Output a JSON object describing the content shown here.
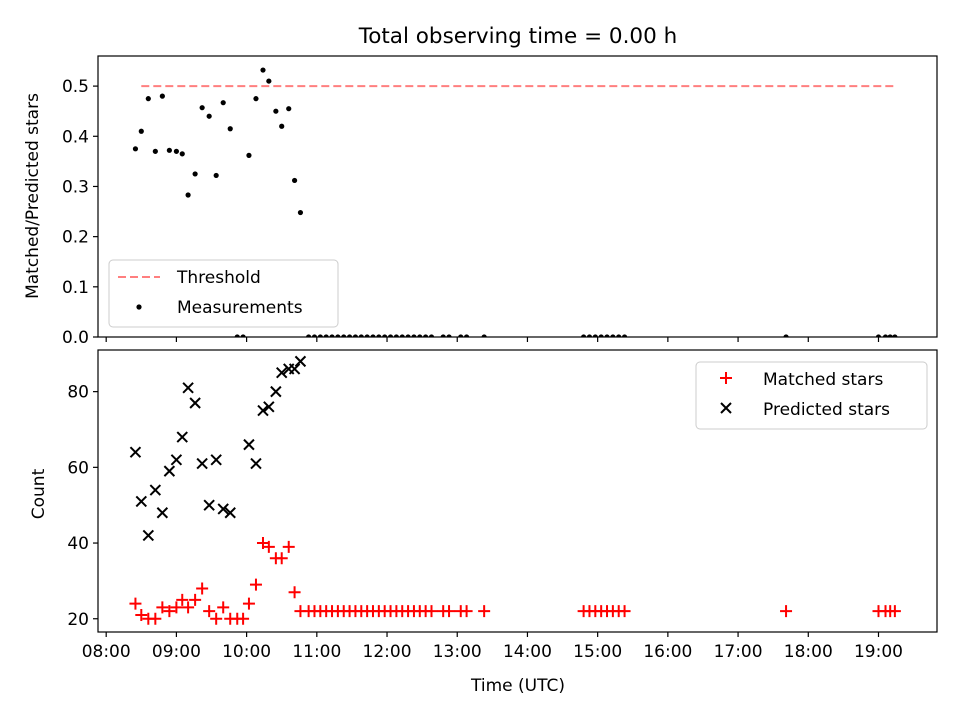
{
  "chart_data": [
    {
      "type": "scatter",
      "title": "Total observing time = 0.00 h",
      "xlabel": "",
      "ylabel": "Matched/Predicted stars",
      "xlim": [
        "07:53",
        "19:50"
      ],
      "ylim": [
        0,
        0.56
      ],
      "yticks": [
        0.0,
        0.1,
        0.2,
        0.3,
        0.4,
        0.5
      ],
      "ytick_labels": [
        "0.0",
        "0.1",
        "0.2",
        "0.3",
        "0.4",
        "0.5"
      ],
      "xticks": [
        "08:00",
        "09:00",
        "10:00",
        "11:00",
        "12:00",
        "13:00",
        "14:00",
        "15:00",
        "16:00",
        "17:00",
        "18:00",
        "19:00"
      ],
      "legend_position": "lower-left",
      "legend": [
        {
          "name": "Threshold",
          "style": "dashed-line",
          "color": "#ff7f7f"
        },
        {
          "name": "Measurements",
          "style": "dot",
          "color": "#000000"
        }
      ],
      "threshold": {
        "name": "Threshold",
        "value": 0.5,
        "x_start": "08:30",
        "x_end": "19:15",
        "color": "#ff7f7f"
      },
      "series": [
        {
          "name": "Measurements",
          "color": "#000000",
          "points": [
            {
              "x": "08:25",
              "y": 0.375
            },
            {
              "x": "08:30",
              "y": 0.41
            },
            {
              "x": "08:36",
              "y": 0.475
            },
            {
              "x": "08:42",
              "y": 0.37
            },
            {
              "x": "08:48",
              "y": 0.48
            },
            {
              "x": "08:54",
              "y": 0.372
            },
            {
              "x": "09:00",
              "y": 0.37
            },
            {
              "x": "09:05",
              "y": 0.365
            },
            {
              "x": "09:10",
              "y": 0.283
            },
            {
              "x": "09:16",
              "y": 0.325
            },
            {
              "x": "09:22",
              "y": 0.457
            },
            {
              "x": "09:28",
              "y": 0.44
            },
            {
              "x": "09:34",
              "y": 0.322
            },
            {
              "x": "09:40",
              "y": 0.467
            },
            {
              "x": "09:46",
              "y": 0.415
            },
            {
              "x": "09:52",
              "y": 0.0
            },
            {
              "x": "09:57",
              "y": 0.0
            },
            {
              "x": "10:02",
              "y": 0.362
            },
            {
              "x": "10:08",
              "y": 0.475
            },
            {
              "x": "10:14",
              "y": 0.532
            },
            {
              "x": "10:19",
              "y": 0.51
            },
            {
              "x": "10:25",
              "y": 0.45
            },
            {
              "x": "10:30",
              "y": 0.42
            },
            {
              "x": "10:36",
              "y": 0.455
            },
            {
              "x": "10:41",
              "y": 0.312
            },
            {
              "x": "10:46",
              "y": 0.248
            },
            {
              "x": "10:53",
              "y": 0.0
            },
            {
              "x": "10:58",
              "y": 0.0
            },
            {
              "x": "11:03",
              "y": 0.0
            },
            {
              "x": "11:08",
              "y": 0.0
            },
            {
              "x": "11:13",
              "y": 0.0
            },
            {
              "x": "11:18",
              "y": 0.0
            },
            {
              "x": "11:23",
              "y": 0.0
            },
            {
              "x": "11:28",
              "y": 0.0
            },
            {
              "x": "11:33",
              "y": 0.0
            },
            {
              "x": "11:38",
              "y": 0.0
            },
            {
              "x": "11:43",
              "y": 0.0
            },
            {
              "x": "11:48",
              "y": 0.0
            },
            {
              "x": "11:53",
              "y": 0.0
            },
            {
              "x": "11:58",
              "y": 0.0
            },
            {
              "x": "12:03",
              "y": 0.0
            },
            {
              "x": "12:08",
              "y": 0.0
            },
            {
              "x": "12:13",
              "y": 0.0
            },
            {
              "x": "12:18",
              "y": 0.0
            },
            {
              "x": "12:23",
              "y": 0.0
            },
            {
              "x": "12:28",
              "y": 0.0
            },
            {
              "x": "12:33",
              "y": 0.0
            },
            {
              "x": "12:38",
              "y": 0.0
            },
            {
              "x": "12:48",
              "y": 0.0
            },
            {
              "x": "12:53",
              "y": 0.0
            },
            {
              "x": "13:03",
              "y": 0.0
            },
            {
              "x": "13:08",
              "y": 0.0
            },
            {
              "x": "13:23",
              "y": 0.0
            },
            {
              "x": "14:48",
              "y": 0.0
            },
            {
              "x": "14:53",
              "y": 0.0
            },
            {
              "x": "14:58",
              "y": 0.0
            },
            {
              "x": "15:03",
              "y": 0.0
            },
            {
              "x": "15:08",
              "y": 0.0
            },
            {
              "x": "15:13",
              "y": 0.0
            },
            {
              "x": "15:18",
              "y": 0.0
            },
            {
              "x": "15:23",
              "y": 0.0
            },
            {
              "x": "17:41",
              "y": 0.0
            },
            {
              "x": "19:00",
              "y": 0.0
            },
            {
              "x": "19:06",
              "y": 0.0
            },
            {
              "x": "19:10",
              "y": 0.0
            },
            {
              "x": "19:14",
              "y": 0.0
            }
          ]
        }
      ]
    },
    {
      "type": "scatter",
      "title": "",
      "xlabel": "Time (UTC)",
      "ylabel": "Count",
      "xlim": [
        "07:53",
        "19:50"
      ],
      "ylim": [
        16.5,
        91
      ],
      "yticks": [
        20,
        40,
        60,
        80
      ],
      "ytick_labels": [
        "20",
        "40",
        "60",
        "80"
      ],
      "xticks": [
        "08:00",
        "09:00",
        "10:00",
        "11:00",
        "12:00",
        "13:00",
        "14:00",
        "15:00",
        "16:00",
        "17:00",
        "18:00",
        "19:00"
      ],
      "xtick_labels": [
        "08:00",
        "09:00",
        "10:00",
        "11:00",
        "12:00",
        "13:00",
        "14:00",
        "15:00",
        "16:00",
        "17:00",
        "18:00",
        "19:00"
      ],
      "legend_position": "top-right",
      "legend": [
        {
          "name": "Matched stars",
          "style": "plus",
          "color": "#ff0000"
        },
        {
          "name": "Predicted stars",
          "style": "x",
          "color": "#000000"
        }
      ],
      "series": [
        {
          "name": "Matched stars",
          "marker": "plus",
          "color": "#ff0000",
          "points": [
            {
              "x": "08:25",
              "y": 24
            },
            {
              "x": "08:30",
              "y": 21
            },
            {
              "x": "08:36",
              "y": 20
            },
            {
              "x": "08:42",
              "y": 20
            },
            {
              "x": "08:48",
              "y": 23
            },
            {
              "x": "08:54",
              "y": 22
            },
            {
              "x": "09:00",
              "y": 23
            },
            {
              "x": "09:05",
              "y": 25
            },
            {
              "x": "09:10",
              "y": 23
            },
            {
              "x": "09:16",
              "y": 25
            },
            {
              "x": "09:22",
              "y": 28
            },
            {
              "x": "09:28",
              "y": 22
            },
            {
              "x": "09:34",
              "y": 20
            },
            {
              "x": "09:40",
              "y": 23
            },
            {
              "x": "09:46",
              "y": 20
            },
            {
              "x": "09:52",
              "y": 20
            },
            {
              "x": "09:57",
              "y": 20
            },
            {
              "x": "10:02",
              "y": 24
            },
            {
              "x": "10:08",
              "y": 29
            },
            {
              "x": "10:14",
              "y": 40
            },
            {
              "x": "10:19",
              "y": 39
            },
            {
              "x": "10:25",
              "y": 36
            },
            {
              "x": "10:30",
              "y": 36
            },
            {
              "x": "10:36",
              "y": 39
            },
            {
              "x": "10:41",
              "y": 27
            },
            {
              "x": "10:46",
              "y": 22
            },
            {
              "x": "10:53",
              "y": 22
            },
            {
              "x": "10:58",
              "y": 22
            },
            {
              "x": "11:03",
              "y": 22
            },
            {
              "x": "11:08",
              "y": 22
            },
            {
              "x": "11:13",
              "y": 22
            },
            {
              "x": "11:18",
              "y": 22
            },
            {
              "x": "11:23",
              "y": 22
            },
            {
              "x": "11:28",
              "y": 22
            },
            {
              "x": "11:33",
              "y": 22
            },
            {
              "x": "11:38",
              "y": 22
            },
            {
              "x": "11:43",
              "y": 22
            },
            {
              "x": "11:48",
              "y": 22
            },
            {
              "x": "11:53",
              "y": 22
            },
            {
              "x": "11:58",
              "y": 22
            },
            {
              "x": "12:03",
              "y": 22
            },
            {
              "x": "12:08",
              "y": 22
            },
            {
              "x": "12:13",
              "y": 22
            },
            {
              "x": "12:18",
              "y": 22
            },
            {
              "x": "12:23",
              "y": 22
            },
            {
              "x": "12:28",
              "y": 22
            },
            {
              "x": "12:33",
              "y": 22
            },
            {
              "x": "12:38",
              "y": 22
            },
            {
              "x": "12:48",
              "y": 22
            },
            {
              "x": "12:53",
              "y": 22
            },
            {
              "x": "13:03",
              "y": 22
            },
            {
              "x": "13:08",
              "y": 22
            },
            {
              "x": "13:23",
              "y": 22
            },
            {
              "x": "14:48",
              "y": 22
            },
            {
              "x": "14:53",
              "y": 22
            },
            {
              "x": "14:58",
              "y": 22
            },
            {
              "x": "15:03",
              "y": 22
            },
            {
              "x": "15:08",
              "y": 22
            },
            {
              "x": "15:13",
              "y": 22
            },
            {
              "x": "15:18",
              "y": 22
            },
            {
              "x": "15:23",
              "y": 22
            },
            {
              "x": "17:41",
              "y": 22
            },
            {
              "x": "19:00",
              "y": 22
            },
            {
              "x": "19:06",
              "y": 22
            },
            {
              "x": "19:10",
              "y": 22
            },
            {
              "x": "19:14",
              "y": 22
            }
          ]
        },
        {
          "name": "Predicted stars",
          "marker": "x",
          "color": "#000000",
          "points": [
            {
              "x": "08:25",
              "y": 64
            },
            {
              "x": "08:30",
              "y": 51
            },
            {
              "x": "08:36",
              "y": 42
            },
            {
              "x": "08:42",
              "y": 54
            },
            {
              "x": "08:48",
              "y": 48
            },
            {
              "x": "08:54",
              "y": 59
            },
            {
              "x": "09:00",
              "y": 62
            },
            {
              "x": "09:05",
              "y": 68
            },
            {
              "x": "09:10",
              "y": 81
            },
            {
              "x": "09:16",
              "y": 77
            },
            {
              "x": "09:22",
              "y": 61
            },
            {
              "x": "09:28",
              "y": 50
            },
            {
              "x": "09:34",
              "y": 62
            },
            {
              "x": "09:40",
              "y": 49
            },
            {
              "x": "09:46",
              "y": 48
            },
            {
              "x": "10:02",
              "y": 66
            },
            {
              "x": "10:08",
              "y": 61
            },
            {
              "x": "10:14",
              "y": 75
            },
            {
              "x": "10:19",
              "y": 76
            },
            {
              "x": "10:25",
              "y": 80
            },
            {
              "x": "10:30",
              "y": 85
            },
            {
              "x": "10:36",
              "y": 86
            },
            {
              "x": "10:41",
              "y": 86
            },
            {
              "x": "10:46",
              "y": 88
            }
          ]
        }
      ]
    }
  ]
}
